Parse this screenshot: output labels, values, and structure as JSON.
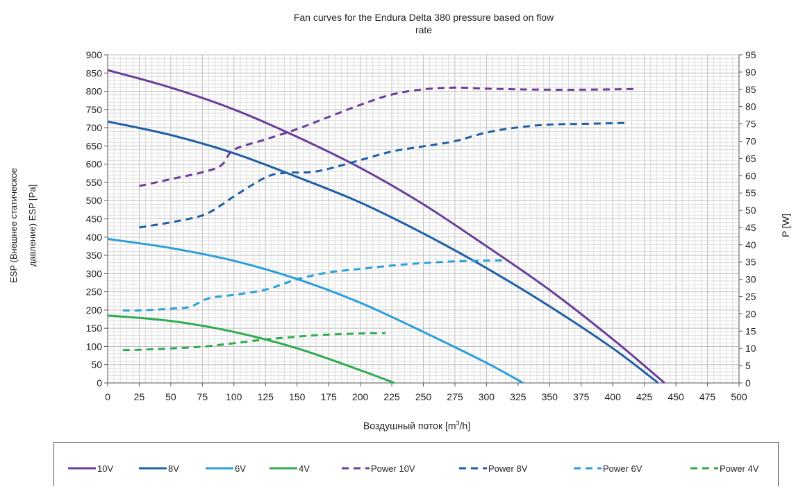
{
  "chart_data": {
    "type": "line",
    "title_line1": "Fan curves for the Endura Delta 380 pressure based on flow",
    "title_line2": "rate",
    "xlabel_text": "Воздушный поток [m",
    "xlabel_sup": "3",
    "xlabel_tail": "/h]",
    "ylabel_line1": "ESP (Внешнее статическое",
    "ylabel_line2": "давление) ESP [Pa]",
    "y2label": "P [W]",
    "xlim": [
      0,
      500
    ],
    "ylim": [
      0,
      900
    ],
    "y2lim": [
      0,
      95
    ],
    "xticks": [
      0,
      25,
      50,
      75,
      100,
      125,
      150,
      175,
      200,
      225,
      250,
      275,
      300,
      325,
      350,
      375,
      400,
      425,
      450,
      475,
      500
    ],
    "yticks": [
      0,
      50,
      100,
      150,
      200,
      250,
      300,
      350,
      400,
      450,
      500,
      550,
      600,
      650,
      700,
      750,
      800,
      850,
      900
    ],
    "y2ticks": [
      0,
      5,
      10,
      15,
      20,
      25,
      30,
      35,
      40,
      45,
      50,
      55,
      60,
      65,
      70,
      75,
      80,
      85,
      90,
      95
    ],
    "grid": true,
    "legend_position": "bottom",
    "series": [
      {
        "name": "10V",
        "axis": "left",
        "style": "solid",
        "color": "#6a3d9a",
        "x": [
          0,
          50,
          100,
          150,
          200,
          250,
          300,
          350,
          400,
          441
        ],
        "y": [
          858,
          810,
          750,
          675,
          590,
          490,
          375,
          255,
          120,
          0
        ]
      },
      {
        "name": "8V",
        "axis": "left",
        "style": "solid",
        "color": "#1f5fa6",
        "x": [
          0,
          50,
          100,
          150,
          200,
          250,
          300,
          350,
          400,
          436
        ],
        "y": [
          717,
          680,
          630,
          565,
          495,
          410,
          315,
          210,
          95,
          0
        ]
      },
      {
        "name": "6V",
        "axis": "left",
        "style": "solid",
        "color": "#2a9fd8",
        "x": [
          0,
          50,
          100,
          150,
          200,
          250,
          300,
          329
        ],
        "y": [
          395,
          370,
          335,
          285,
          220,
          140,
          55,
          0
        ]
      },
      {
        "name": "4V",
        "axis": "left",
        "style": "solid",
        "color": "#2eac4e",
        "x": [
          0,
          50,
          100,
          150,
          200,
          227
        ],
        "y": [
          185,
          170,
          140,
          95,
          35,
          0
        ]
      },
      {
        "name": "Power 10V",
        "axis": "right",
        "style": "dashed",
        "color": "#6a3d9a",
        "x": [
          25,
          50,
          75,
          90,
          100,
          125,
          150,
          175,
          200,
          225,
          250,
          275,
          300,
          325,
          350,
          375,
          400,
          420
        ],
        "y": [
          57,
          59,
          61,
          63,
          67.5,
          70.5,
          73.5,
          77,
          80.5,
          83.5,
          85,
          85.5,
          85.2,
          85,
          84.9,
          84.9,
          85,
          85.1
        ]
      },
      {
        "name": "Power 8V",
        "axis": "right",
        "style": "dashed",
        "color": "#1f5fa6",
        "x": [
          25,
          50,
          75,
          90,
          100,
          125,
          140,
          160,
          175,
          200,
          225,
          250,
          275,
          300,
          325,
          350,
          375,
          400,
          412
        ],
        "y": [
          45,
          46.5,
          48.5,
          51.5,
          54,
          59.5,
          60.8,
          61,
          62,
          64.5,
          67,
          68.5,
          70,
          72.5,
          74,
          74.8,
          75,
          75.2,
          75.3
        ]
      },
      {
        "name": "Power 6V",
        "axis": "right",
        "style": "dashed",
        "color": "#2a9fd8",
        "x": [
          12,
          25,
          50,
          65,
          80,
          100,
          125,
          150,
          175,
          200,
          225,
          250,
          275,
          300,
          315
        ],
        "y": [
          21,
          21,
          21.5,
          22,
          24.5,
          25.5,
          27,
          30,
          32,
          33,
          34,
          34.7,
          35.2,
          35.4,
          35.5
        ]
      },
      {
        "name": "Power 4V",
        "axis": "right",
        "style": "dashed",
        "color": "#2eac4e",
        "x": [
          12,
          25,
          50,
          75,
          100,
          125,
          150,
          175,
          200,
          220
        ],
        "y": [
          9.5,
          9.6,
          10,
          10.5,
          11.5,
          12.6,
          13.4,
          14,
          14.3,
          14.4
        ]
      }
    ]
  }
}
